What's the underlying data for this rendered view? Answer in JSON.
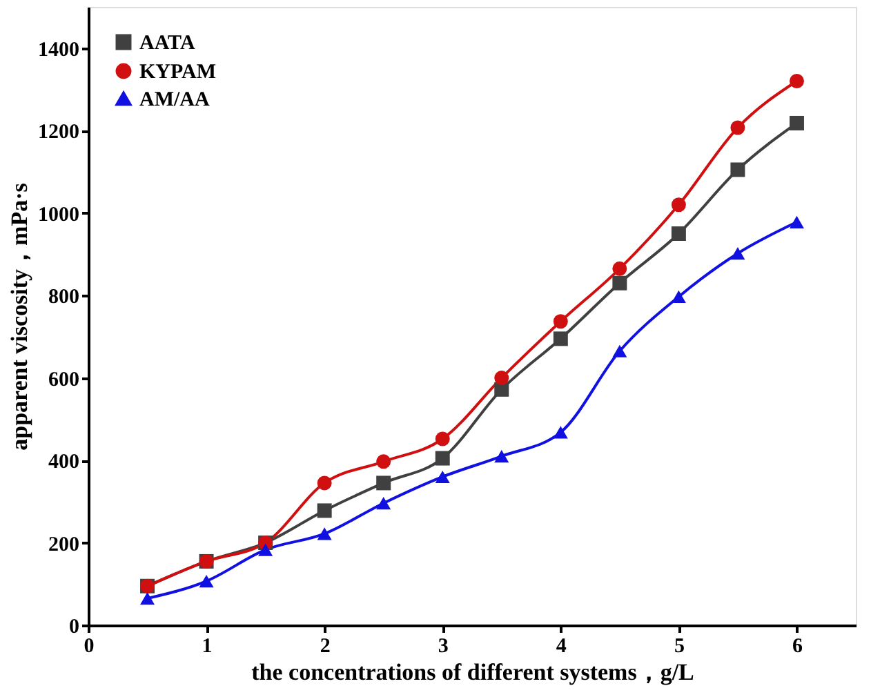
{
  "chart_data": {
    "type": "line",
    "xlabel": "the concentrations of different systems，g/L",
    "ylabel": "apparent viscosity，mPa·s",
    "x": [
      0.5,
      1,
      1.5,
      2,
      2.5,
      3,
      3.5,
      4,
      4.5,
      5,
      5.5,
      6
    ],
    "series": [
      {
        "name": "AATA",
        "color": "#404040",
        "marker": "square",
        "values": [
          95,
          155,
          200,
          278,
          345,
          405,
          572,
          695,
          830,
          950,
          1105,
          1218
        ]
      },
      {
        "name": "KYPAM",
        "color": "#d01010",
        "marker": "circle",
        "values": [
          95,
          155,
          200,
          345,
          397,
          452,
          600,
          737,
          865,
          1020,
          1207,
          1320
        ]
      },
      {
        "name": "AM/AA",
        "color": "#1010e0",
        "marker": "triangle",
        "values": [
          65,
          107,
          183,
          222,
          296,
          360,
          410,
          468,
          665,
          797,
          902,
          978
        ]
      }
    ],
    "xlim": [
      0,
      6.5
    ],
    "xticks": [
      0,
      1,
      2,
      3,
      4,
      5,
      6
    ],
    "ylim": [
      0,
      1500
    ],
    "yticks": [
      0,
      200,
      400,
      600,
      800,
      1000,
      1200,
      1400
    ],
    "legend": "top left",
    "grid": false,
    "line_style": "solid"
  }
}
